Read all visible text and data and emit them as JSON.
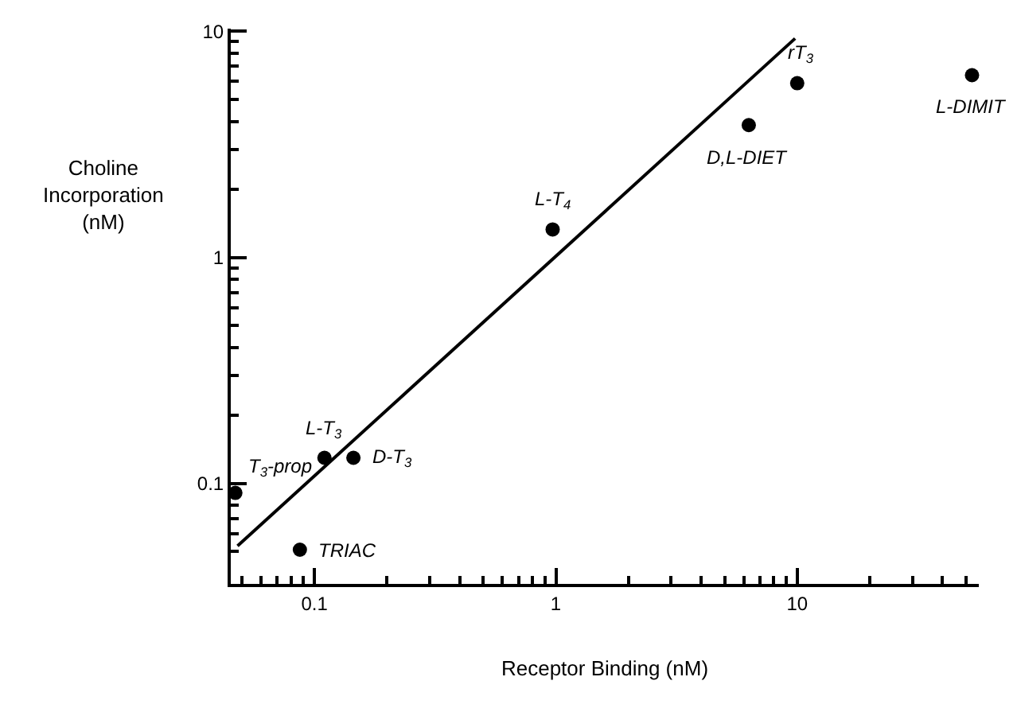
{
  "chart_data": {
    "type": "scatter",
    "xlabel": "Receptor Binding (nM)",
    "ylabel": "Choline\nIncorporation\n(nM)",
    "log": "xy",
    "grid": false,
    "marker": "circle",
    "xlim": [
      0.045,
      55
    ],
    "ylim": [
      0.036,
      10
    ],
    "xticks": [
      {
        "value": 0.05,
        "label": null
      },
      {
        "value": 0.06,
        "label": null
      },
      {
        "value": 0.07,
        "label": null
      },
      {
        "value": 0.08,
        "label": null
      },
      {
        "value": 0.09,
        "label": null
      },
      0.1,
      {
        "value": 0.2,
        "label": null
      },
      {
        "value": 0.3,
        "label": null
      },
      {
        "value": 0.4,
        "label": null
      },
      {
        "value": 0.5,
        "label": null
      },
      {
        "value": 0.6,
        "label": null
      },
      {
        "value": 0.7,
        "label": null
      },
      {
        "value": 0.8,
        "label": null
      },
      {
        "value": 0.9,
        "label": null
      },
      1,
      {
        "value": 2,
        "label": null
      },
      {
        "value": 3,
        "label": null
      },
      {
        "value": 4,
        "label": null
      },
      {
        "value": 5,
        "label": null
      },
      {
        "value": 6,
        "label": null
      },
      {
        "value": 7,
        "label": null
      },
      {
        "value": 8,
        "label": null
      },
      {
        "value": 9,
        "label": null
      },
      10,
      {
        "value": 20,
        "label": null
      },
      {
        "value": 30,
        "label": null
      },
      {
        "value": 40,
        "label": null
      },
      {
        "value": 50,
        "label": null
      }
    ],
    "yticks": [
      {
        "value": 0.05,
        "label": null
      },
      {
        "value": 0.06,
        "label": null
      },
      {
        "value": 0.07,
        "label": null
      },
      {
        "value": 0.08,
        "label": null
      },
      {
        "value": 0.09,
        "label": null
      },
      0.1,
      {
        "value": 0.2,
        "label": null
      },
      {
        "value": 0.3,
        "label": null
      },
      {
        "value": 0.4,
        "label": null
      },
      {
        "value": 0.5,
        "label": null
      },
      {
        "value": 0.6,
        "label": null
      },
      {
        "value": 0.7,
        "label": null
      },
      {
        "value": 0.8,
        "label": null
      },
      {
        "value": 0.9,
        "label": null
      },
      1,
      {
        "value": 2,
        "label": null
      },
      {
        "value": 3,
        "label": null
      },
      {
        "value": 4,
        "label": null
      },
      {
        "value": 5,
        "label": null
      },
      {
        "value": 6,
        "label": null
      },
      {
        "value": 7,
        "label": null
      },
      {
        "value": 8,
        "label": null
      },
      {
        "value": 9,
        "label": null
      },
      10
    ],
    "series": [
      {
        "type": "scatter",
        "color": "#000000",
        "x": [
          0.047,
          0.11,
          0.145,
          0.087,
          0.97,
          6.3,
          10,
          53
        ],
        "values": [
          0.091,
          0.13,
          0.13,
          0.051,
          1.33,
          3.85,
          5.9,
          6.4
        ]
      },
      {
        "type": "line",
        "color": "#000000",
        "marker": "none",
        "x": [
          0.048,
          9.8
        ],
        "values": [
          0.053,
          9.3
        ]
      }
    ],
    "annotations": [
      {
        "text": "T$_{3}$-prop",
        "x": 0.047,
        "y": 0.091
      },
      {
        "text": "L-T$_{3}$",
        "x": 0.11,
        "y": 0.13
      },
      {
        "text": "D-T$_{3}$",
        "x": 0.145,
        "y": 0.13
      },
      {
        "text": "TRIAC",
        "x": 0.087,
        "y": 0.051
      },
      {
        "text": "L-T$_{4}$",
        "x": 0.97,
        "y": 1.33
      },
      {
        "text": "D,L-DIET",
        "x": 6.3,
        "y": 3.85
      },
      {
        "text": "rT$_{3}$",
        "x": 10,
        "y": 5.9
      },
      {
        "text": "L-DIMIT",
        "x": 53,
        "y": 6.4
      }
    ]
  }
}
